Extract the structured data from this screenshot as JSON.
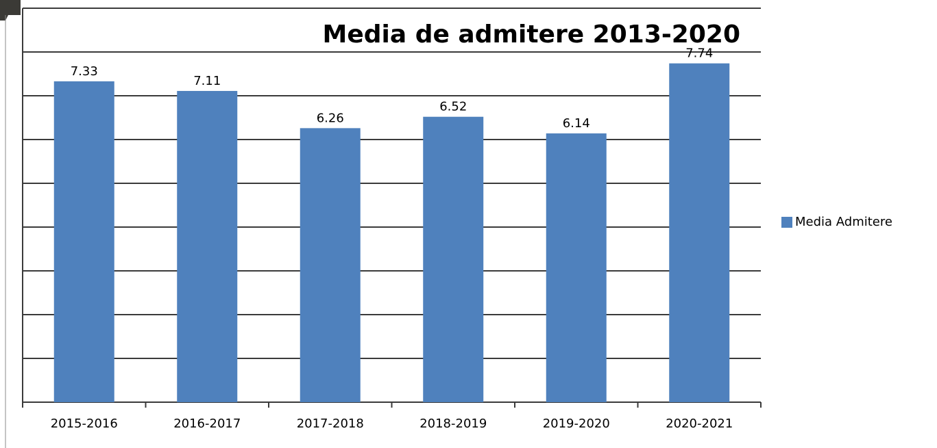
{
  "chart_data": {
    "type": "bar",
    "title": "Media de admitere 2013-2020",
    "categories": [
      "2015-2016",
      "2016-2017",
      "2017-2018",
      "2018-2019",
      "2019-2020",
      "2020-2021"
    ],
    "series": [
      {
        "name": "Media Admitere",
        "color": "#4f81bd",
        "values": [
          7.33,
          7.11,
          6.26,
          6.52,
          6.14,
          7.74
        ]
      }
    ],
    "ylim": [
      0,
      9
    ],
    "yticks": [
      0,
      1,
      2,
      3,
      4,
      5,
      6,
      7,
      8,
      9
    ],
    "grid": true,
    "legend": "right"
  }
}
